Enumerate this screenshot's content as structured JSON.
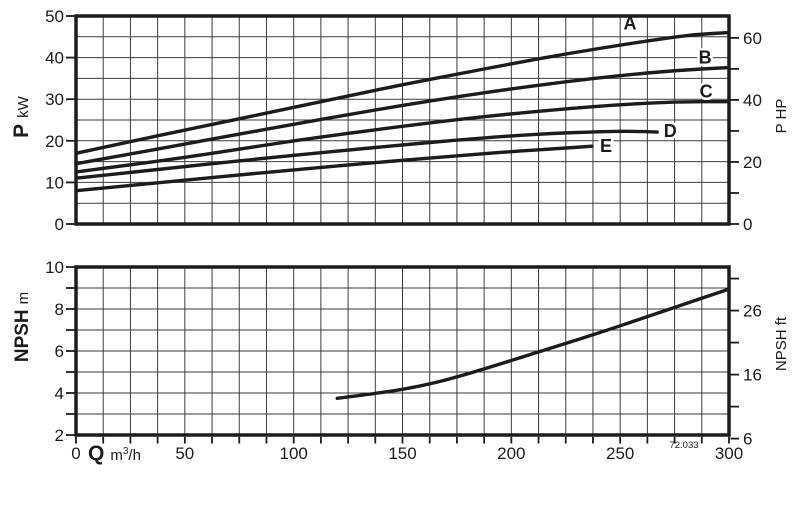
{
  "styles": {
    "bg": "#ffffff",
    "ink": "#1c1c1c",
    "grid": "#3d3d3d",
    "frame_width": 3.5,
    "curve_width": 3.4,
    "grid_width": 1
  },
  "labels": {
    "power_left_main": "P",
    "power_left_unit": "kW",
    "power_right": "P HP",
    "npsh_left_main": "NPSH",
    "npsh_left_unit": "m",
    "npsh_right": "NPSH ft",
    "flow_main": "Q",
    "flow_unit_base": "m",
    "flow_unit_sup": "3",
    "flow_unit_rest": "/h",
    "code": "72.033"
  },
  "chart_data": [
    {
      "type": "line",
      "panel": "power",
      "title": "Pump shaft power vs flow, curves A-E",
      "x": {
        "label": "Q m³/h",
        "range": [
          0,
          300
        ],
        "grid_step": 12.5,
        "tick_labels": [
          0,
          50,
          100,
          150,
          200,
          250,
          300
        ]
      },
      "y_left": {
        "label": "P kW",
        "range": [
          0,
          50
        ],
        "grid_step": 5,
        "tick_labels": [
          0,
          10,
          20,
          30,
          40,
          50
        ]
      },
      "y_right": {
        "label": "P HP",
        "hp_per_kw": 1.341,
        "tick_marks": [
          0,
          10,
          20,
          30,
          40,
          50,
          60
        ],
        "tick_labels": [
          0,
          20,
          40,
          60
        ]
      },
      "series": [
        {
          "name": "A",
          "label_at": [
            254.5,
            48.2
          ],
          "points": [
            [
              0,
              17
            ],
            [
              25,
              19.8
            ],
            [
              50,
              22.6
            ],
            [
              75,
              25.3
            ],
            [
              100,
              28
            ],
            [
              125,
              30.8
            ],
            [
              150,
              33.5
            ],
            [
              175,
              36
            ],
            [
              200,
              38.5
            ],
            [
              225,
              40.9
            ],
            [
              250,
              43
            ],
            [
              270,
              44.6
            ],
            [
              285,
              45.6
            ],
            [
              300,
              46
            ]
          ]
        },
        {
          "name": "B",
          "label_at": [
            289,
            40
          ],
          "points": [
            [
              0,
              14.5
            ],
            [
              25,
              16.8
            ],
            [
              50,
              19.2
            ],
            [
              75,
              21.6
            ],
            [
              100,
              24
            ],
            [
              125,
              26.3
            ],
            [
              150,
              28.5
            ],
            [
              175,
              30.6
            ],
            [
              200,
              32.5
            ],
            [
              225,
              34.2
            ],
            [
              250,
              35.7
            ],
            [
              275,
              36.9
            ],
            [
              300,
              37.6
            ]
          ]
        },
        {
          "name": "C",
          "label_at": [
            289.5,
            31.8
          ],
          "points": [
            [
              0,
              12.5
            ],
            [
              25,
              14.2
            ],
            [
              50,
              16
            ],
            [
              75,
              18
            ],
            [
              100,
              20
            ],
            [
              125,
              21.8
            ],
            [
              150,
              23.5
            ],
            [
              175,
              25.1
            ],
            [
              200,
              26.5
            ],
            [
              225,
              27.7
            ],
            [
              250,
              28.7
            ],
            [
              275,
              29.4
            ],
            [
              300,
              29.4
            ]
          ]
        },
        {
          "name": "D",
          "label_at": [
            273,
            22.4
          ],
          "points": [
            [
              0,
              11
            ],
            [
              25,
              12.4
            ],
            [
              50,
              13.8
            ],
            [
              75,
              15.2
            ],
            [
              100,
              16.5
            ],
            [
              125,
              17.8
            ],
            [
              150,
              19
            ],
            [
              175,
              20.2
            ],
            [
              200,
              21.2
            ],
            [
              220,
              21.8
            ],
            [
              240,
              22.2
            ],
            [
              255,
              22.3
            ],
            [
              267,
              22.1
            ]
          ]
        },
        {
          "name": "E",
          "label_at": [
            243.5,
            18.8
          ],
          "points": [
            [
              0,
              8
            ],
            [
              25,
              9.3
            ],
            [
              50,
              10.5
            ],
            [
              75,
              11.8
            ],
            [
              100,
              13
            ],
            [
              125,
              14.2
            ],
            [
              150,
              15.3
            ],
            [
              175,
              16.4
            ],
            [
              200,
              17.4
            ],
            [
              220,
              18.1
            ],
            [
              237,
              18.7
            ]
          ]
        }
      ]
    },
    {
      "type": "line",
      "panel": "npsh",
      "title": "NPSH vs flow",
      "x": {
        "label": "Q m³/h",
        "range": [
          0,
          300
        ],
        "grid_step": 12.5,
        "tick_labels": [
          0,
          50,
          100,
          150,
          200,
          250,
          300
        ]
      },
      "y_left": {
        "label": "NPSH m",
        "range": [
          2,
          10
        ],
        "grid_step": 1,
        "tick_marks": [
          2,
          3,
          4,
          5,
          6,
          7,
          8,
          9,
          10
        ],
        "tick_labels": [
          2,
          4,
          6,
          8,
          10
        ]
      },
      "y_right": {
        "label": "NPSH ft",
        "ft_per_m": 3.2808,
        "tick_marks": [
          6,
          11,
          16,
          21,
          26,
          31
        ],
        "tick_labels": [
          6,
          16,
          26
        ]
      },
      "series": [
        {
          "name": "NPSH",
          "points": [
            [
              120,
              3.75
            ],
            [
              140,
              4.0
            ],
            [
              160,
              4.35
            ],
            [
              180,
              4.9
            ],
            [
              200,
              5.55
            ],
            [
              220,
              6.2
            ],
            [
              240,
              6.85
            ],
            [
              260,
              7.55
            ],
            [
              280,
              8.25
            ],
            [
              300,
              8.95
            ]
          ]
        }
      ]
    }
  ]
}
